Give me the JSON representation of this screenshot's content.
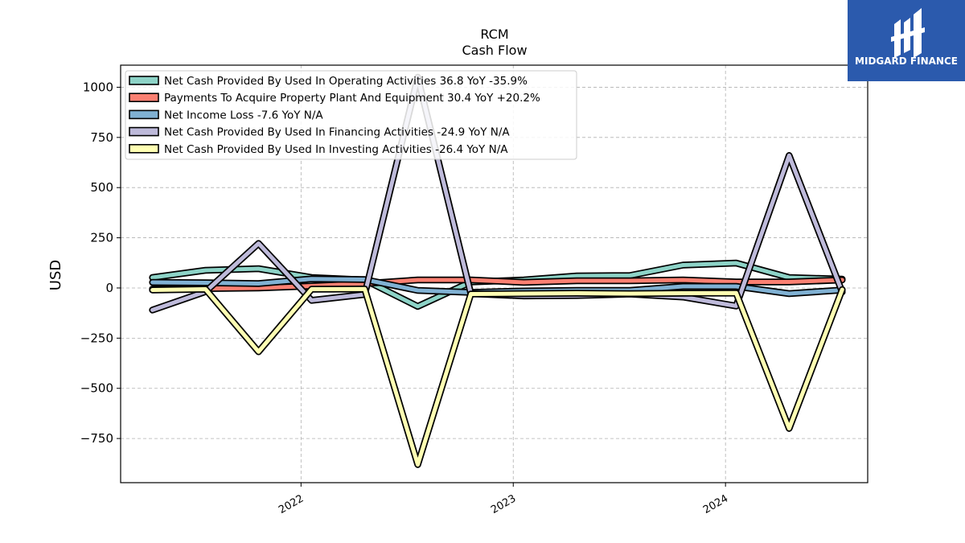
{
  "brand": {
    "name": "MIDGARD FINANCE",
    "bg_color": "#2b5aad"
  },
  "chart_data": {
    "type": "line",
    "title": "RCM",
    "subtitle": "Cash Flow",
    "xlabel": "",
    "ylabel": "USD",
    "ylim": [
      -970,
      1110
    ],
    "xlim": [
      2021.15,
      2024.67
    ],
    "yticks": [
      1000,
      750,
      500,
      250,
      0,
      -250,
      -500,
      -750
    ],
    "ytick_labels": [
      "1000",
      "750",
      "500",
      "250",
      "0",
      "−250",
      "−500",
      "−750"
    ],
    "xticks": [
      2022,
      2023,
      2024
    ],
    "xtick_labels": [
      "2022",
      "2023",
      "2024"
    ],
    "grid": true,
    "legend_position": "top-left",
    "x": [
      2021.3,
      2021.55,
      2021.8,
      2022.05,
      2022.3,
      2022.55,
      2022.8,
      2023.05,
      2023.3,
      2023.55,
      2023.8,
      2024.05,
      2024.3,
      2024.55
    ],
    "series": [
      {
        "name": "Net Cash Provided By Used In Operating Activities  36.8 YoY -35.9%",
        "color": "#8dd3c7",
        "values": [
          52,
          88,
          96,
          52,
          40,
          -92,
          30,
          40,
          60,
          62,
          114,
          124,
          52,
          44
        ]
      },
      {
        "name": "Payments To Acquire Property Plant And Equipment  30.4 YoY +20.2%",
        "color": "#fb8072",
        "values": [
          -5,
          -3,
          0,
          10,
          22,
          40,
          40,
          28,
          36,
          36,
          40,
          30,
          30,
          40
        ]
      },
      {
        "name": "Net Income Loss  -7.6 YoY N/A",
        "color": "#80b1d3",
        "values": [
          28,
          26,
          22,
          45,
          42,
          -12,
          -22,
          -15,
          -12,
          -12,
          8,
          8,
          -28,
          -10
        ]
      },
      {
        "name": "Net Cash Provided By Used In Financing Activities  -24.9 YoY N/A",
        "color": "#bebada",
        "values": [
          -110,
          -18,
          222,
          -62,
          -32,
          1050,
          -28,
          -40,
          -38,
          -30,
          -45,
          -90,
          660,
          -20
        ]
      },
      {
        "name": "Net Cash Provided By Used In Investing Activities  -26.4 YoY N/A",
        "color": "#ffffb3",
        "values": [
          -10,
          -6,
          -318,
          -6,
          -5,
          -880,
          -30,
          -28,
          -26,
          -28,
          -26,
          -25,
          -700,
          -8
        ]
      }
    ]
  }
}
